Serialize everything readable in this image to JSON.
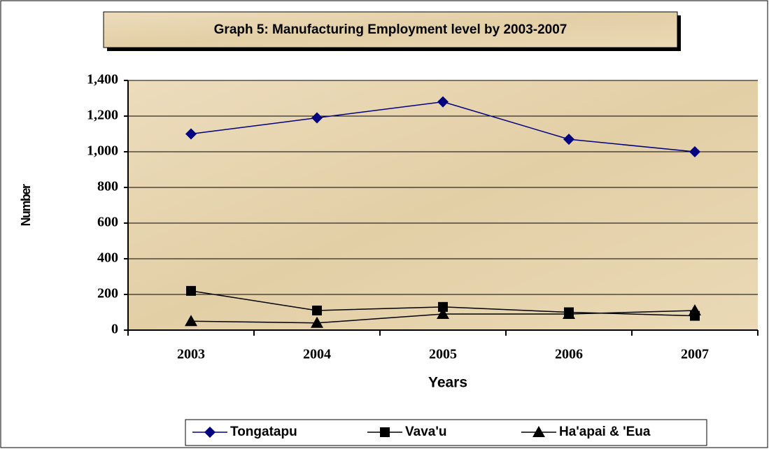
{
  "chart_data": {
    "type": "line",
    "title": "Graph 5: Manufacturing Employment level by 2003-2007",
    "x_label": "Years",
    "y_label": "Number",
    "categories": [
      "2003",
      "2004",
      "2005",
      "2006",
      "2007"
    ],
    "series": [
      {
        "name": "Tongatapu",
        "color": "#000080",
        "marker": "diamond",
        "values": [
          1100,
          1190,
          1280,
          1070,
          1000
        ]
      },
      {
        "name": "Vava'u",
        "color": "#000000",
        "marker": "square",
        "values": [
          220,
          110,
          130,
          100,
          80
        ]
      },
      {
        "name": "Ha'apai & 'Eua",
        "color": "#000000",
        "marker": "triangle",
        "values": [
          50,
          40,
          90,
          90,
          110
        ]
      }
    ],
    "ylim": [
      0,
      1400
    ],
    "yticks": [
      0,
      200,
      400,
      600,
      800,
      {
        "value": 1000,
        "label": "1,000"
      },
      {
        "value": 1200,
        "label": "1,200"
      },
      {
        "value": 1400,
        "label": "1,400"
      }
    ],
    "grid": true,
    "legend": "bottom"
  }
}
